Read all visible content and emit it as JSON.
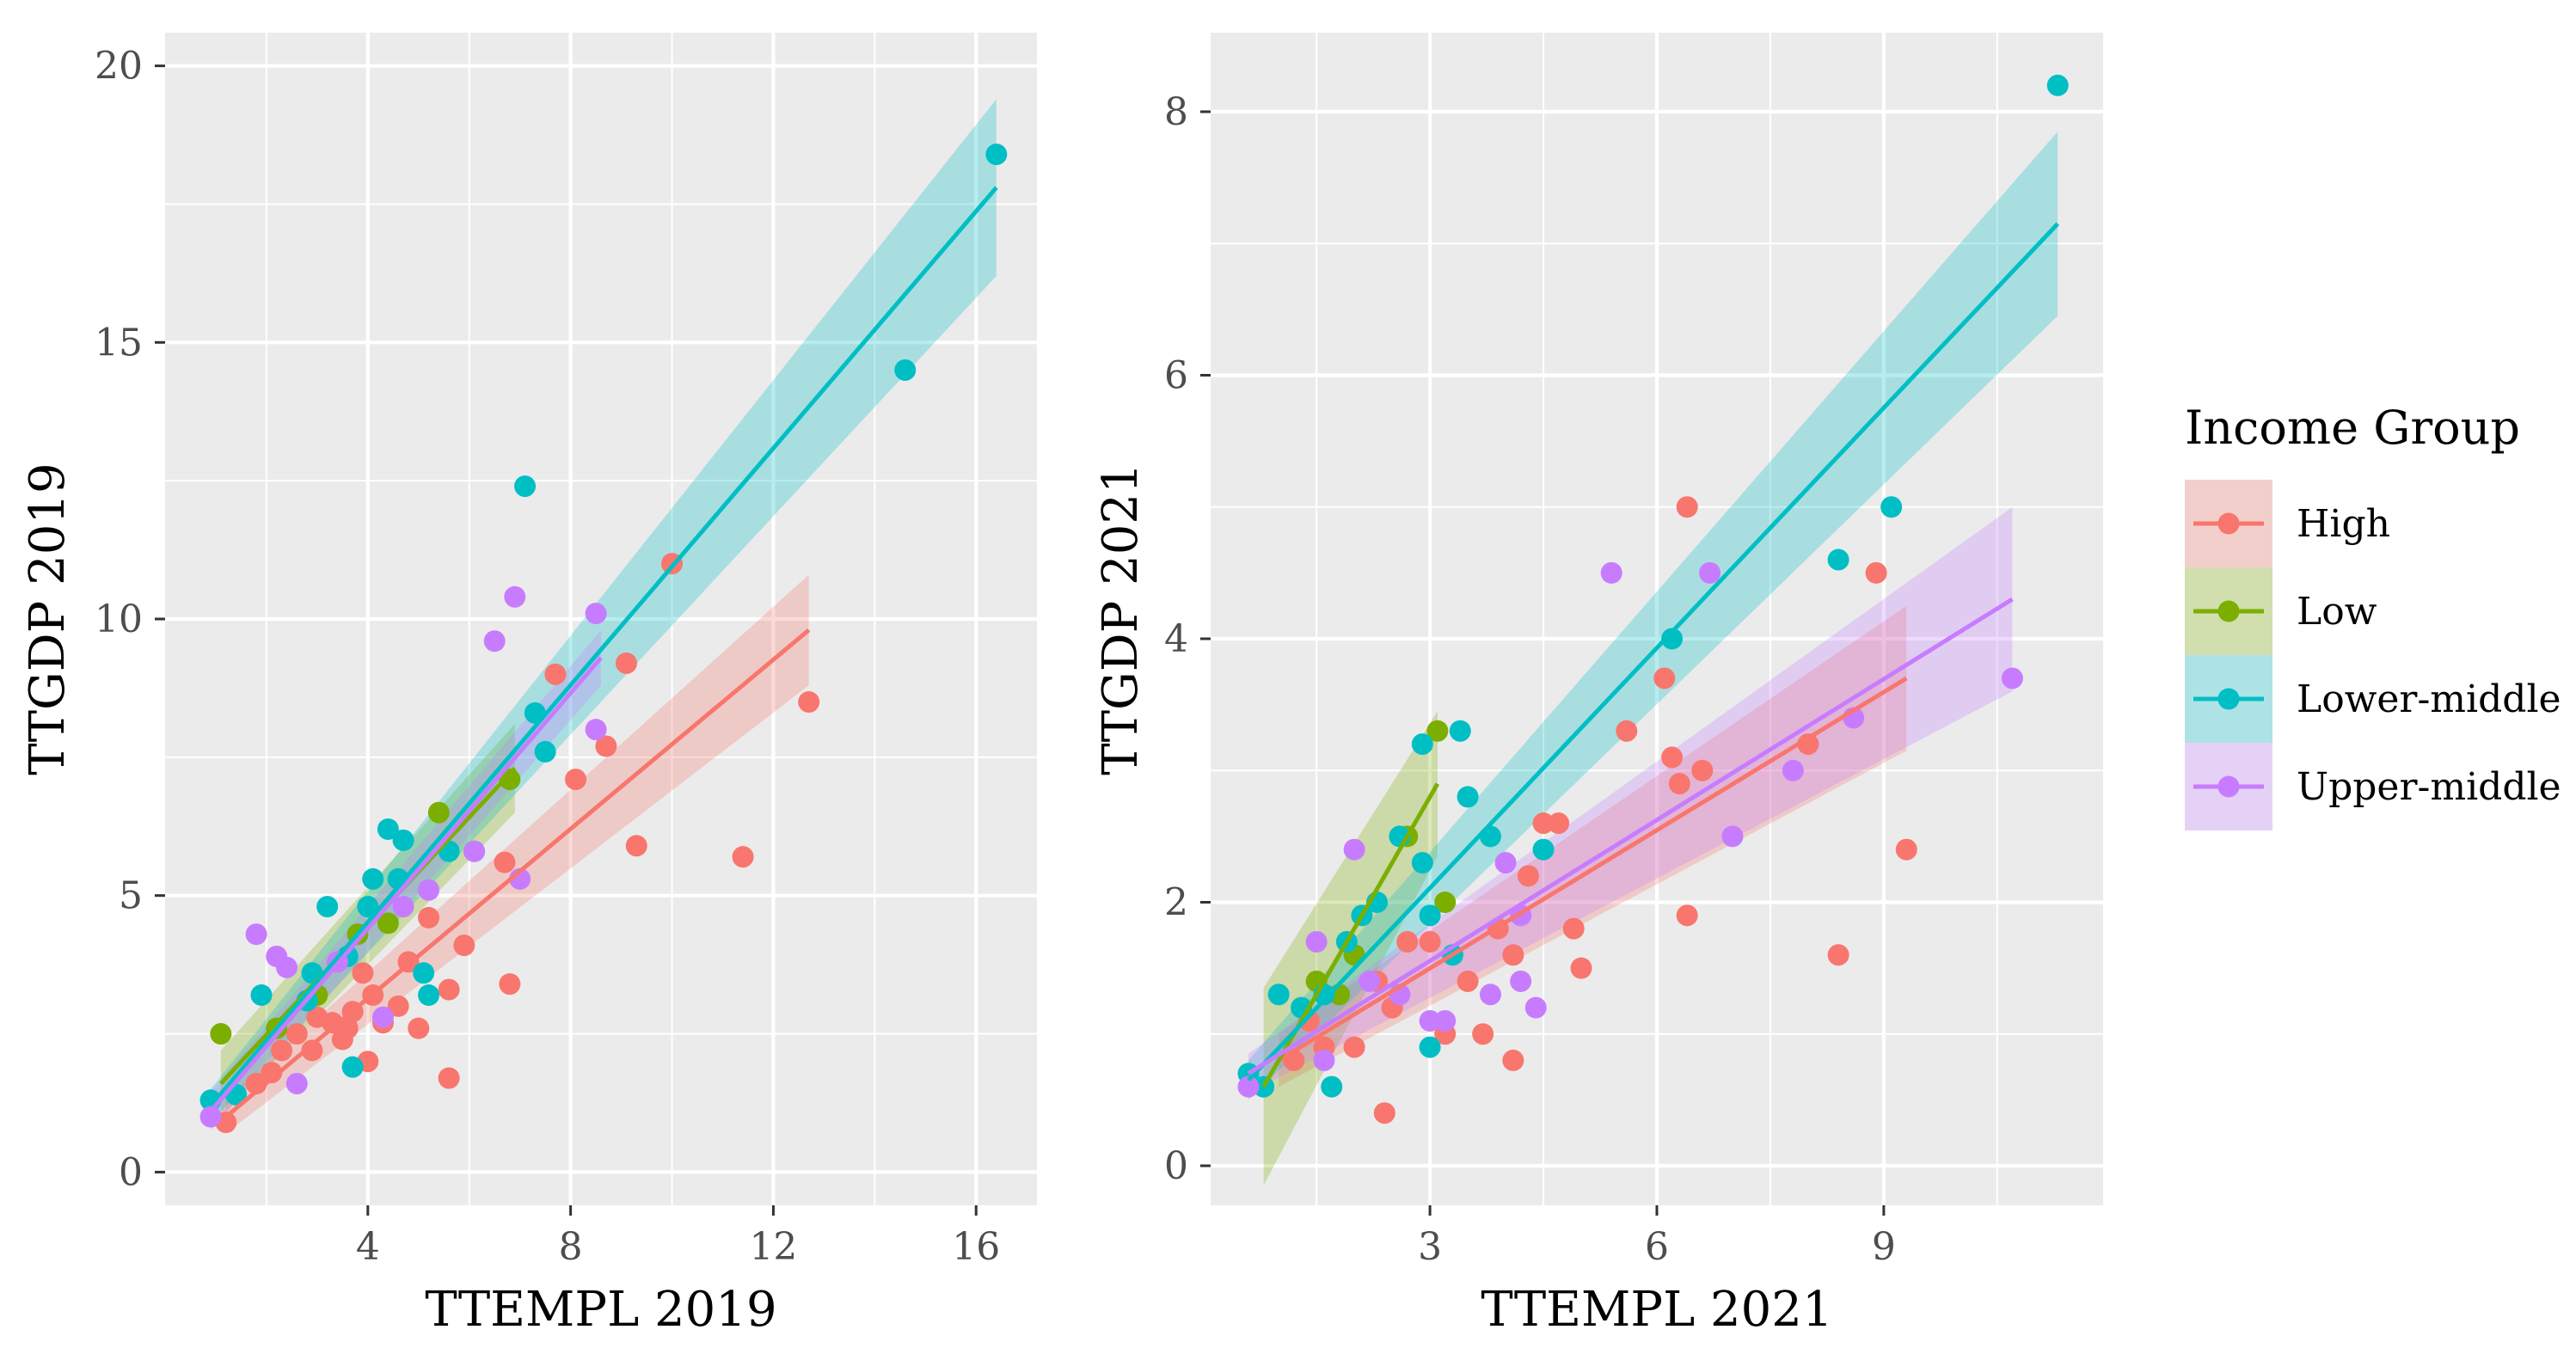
{
  "legend": {
    "title": "Income Group",
    "entries": [
      {
        "label": "High",
        "color": "#F8766D"
      },
      {
        "label": "Low",
        "color": "#7CAE00"
      },
      {
        "label": "Lower-middle",
        "color": "#00BFC4"
      },
      {
        "label": "Upper-middle",
        "color": "#C77CFF"
      }
    ]
  },
  "chart_data": [
    {
      "type": "scatter",
      "xlabel": "TTEMPL 2019",
      "ylabel": "TTGDP 2019",
      "xlim": [
        0,
        17.2
      ],
      "ylim": [
        -0.6,
        20.6
      ],
      "xticks": [
        4,
        8,
        12,
        16
      ],
      "yticks": [
        0,
        5,
        10,
        15,
        20
      ],
      "series": [
        {
          "name": "High",
          "color": "#F8766D",
          "fit": {
            "x": [
              1.2,
              12.7
            ],
            "y": [
              1.0,
              9.8
            ],
            "se": [
              0.3,
              1.0
            ]
          },
          "points": [
            [
              1.2,
              0.9
            ],
            [
              1.8,
              1.6
            ],
            [
              2.1,
              1.8
            ],
            [
              2.3,
              2.2
            ],
            [
              2.6,
              2.5
            ],
            [
              3.0,
              2.8
            ],
            [
              3.3,
              2.7
            ],
            [
              3.5,
              2.4
            ],
            [
              3.7,
              2.9
            ],
            [
              3.9,
              3.6
            ],
            [
              4.1,
              3.2
            ],
            [
              4.3,
              2.7
            ],
            [
              4.6,
              3.0
            ],
            [
              4.8,
              3.8
            ],
            [
              5.0,
              2.6
            ],
            [
              5.2,
              4.6
            ],
            [
              5.6,
              3.3
            ],
            [
              5.9,
              4.1
            ],
            [
              6.8,
              3.4
            ],
            [
              6.7,
              5.6
            ],
            [
              5.6,
              1.7
            ],
            [
              4.0,
              2.0
            ],
            [
              8.1,
              7.1
            ],
            [
              8.7,
              7.7
            ],
            [
              9.3,
              5.9
            ],
            [
              9.1,
              9.2
            ],
            [
              10.0,
              11.0
            ],
            [
              11.4,
              5.7
            ],
            [
              12.7,
              8.5
            ],
            [
              7.7,
              9.0
            ],
            [
              2.9,
              2.2
            ],
            [
              3.6,
              2.6
            ]
          ]
        },
        {
          "name": "Low",
          "color": "#7CAE00",
          "fit": {
            "x": [
              1.1,
              6.9
            ],
            "y": [
              1.6,
              7.3
            ],
            "se": [
              0.6,
              0.8
            ]
          },
          "points": [
            [
              1.1,
              2.5
            ],
            [
              2.2,
              2.6
            ],
            [
              3.0,
              3.2
            ],
            [
              3.8,
              4.3
            ],
            [
              4.4,
              4.5
            ],
            [
              5.4,
              6.5
            ],
            [
              6.8,
              7.1
            ]
          ]
        },
        {
          "name": "Lower-middle",
          "color": "#00BFC4",
          "fit": {
            "x": [
              0.9,
              16.4
            ],
            "y": [
              1.2,
              17.8
            ],
            "se": [
              0.3,
              1.6
            ]
          },
          "points": [
            [
              0.9,
              1.3
            ],
            [
              1.4,
              1.4
            ],
            [
              1.9,
              3.2
            ],
            [
              2.8,
              3.1
            ],
            [
              3.2,
              4.8
            ],
            [
              3.6,
              3.9
            ],
            [
              4.0,
              4.8
            ],
            [
              4.1,
              5.3
            ],
            [
              4.4,
              6.2
            ],
            [
              4.6,
              5.3
            ],
            [
              4.7,
              6.0
            ],
            [
              5.1,
              3.6
            ],
            [
              5.2,
              3.2
            ],
            [
              5.6,
              5.8
            ],
            [
              6.1,
              5.8
            ],
            [
              7.1,
              12.4
            ],
            [
              7.3,
              8.3
            ],
            [
              7.5,
              7.6
            ],
            [
              14.6,
              14.5
            ],
            [
              16.4,
              18.4
            ],
            [
              3.7,
              1.9
            ],
            [
              2.9,
              3.6
            ]
          ]
        },
        {
          "name": "Upper-middle",
          "color": "#C77CFF",
          "fit": {
            "x": [
              0.9,
              8.6
            ],
            "y": [
              1.1,
              9.3
            ],
            "se": [
              0.35,
              0.5
            ]
          },
          "points": [
            [
              0.9,
              1.0
            ],
            [
              1.8,
              4.3
            ],
            [
              2.2,
              3.9
            ],
            [
              2.4,
              3.7
            ],
            [
              2.6,
              1.6
            ],
            [
              3.4,
              3.8
            ],
            [
              4.3,
              2.8
            ],
            [
              5.2,
              5.1
            ],
            [
              6.1,
              5.8
            ],
            [
              6.5,
              9.6
            ],
            [
              6.9,
              10.4
            ],
            [
              7.0,
              5.3
            ],
            [
              8.5,
              10.1
            ],
            [
              8.5,
              8.0
            ],
            [
              4.7,
              4.8
            ]
          ]
        }
      ]
    },
    {
      "type": "scatter",
      "xlabel": "TTEMPL 2021",
      "ylabel": "TTGDP 2021",
      "xlim": [
        0.1,
        11.9
      ],
      "ylim": [
        -0.3,
        8.6
      ],
      "xticks": [
        3,
        6,
        9
      ],
      "yticks": [
        0,
        2,
        4,
        6,
        8
      ],
      "series": [
        {
          "name": "High",
          "color": "#F8766D",
          "fit": {
            "x": [
              1.0,
              9.3
            ],
            "y": [
              0.8,
              3.7
            ],
            "se": [
              0.2,
              0.55
            ]
          },
          "points": [
            [
              1.2,
              0.8
            ],
            [
              1.4,
              1.1
            ],
            [
              1.6,
              0.9
            ],
            [
              2.0,
              0.9
            ],
            [
              2.3,
              1.4
            ],
            [
              2.5,
              1.2
            ],
            [
              2.7,
              1.7
            ],
            [
              3.0,
              1.7
            ],
            [
              3.2,
              1.0
            ],
            [
              3.5,
              1.4
            ],
            [
              3.7,
              1.0
            ],
            [
              3.9,
              1.8
            ],
            [
              4.1,
              1.6
            ],
            [
              4.3,
              2.2
            ],
            [
              4.5,
              2.6
            ],
            [
              4.7,
              2.6
            ],
            [
              4.9,
              1.8
            ],
            [
              5.0,
              1.5
            ],
            [
              5.6,
              3.3
            ],
            [
              6.1,
              3.7
            ],
            [
              6.2,
              3.1
            ],
            [
              6.3,
              2.9
            ],
            [
              6.4,
              5.0
            ],
            [
              6.6,
              3.0
            ],
            [
              8.0,
              3.2
            ],
            [
              8.4,
              1.6
            ],
            [
              8.9,
              4.5
            ],
            [
              9.3,
              2.4
            ],
            [
              6.4,
              1.9
            ],
            [
              2.4,
              0.4
            ],
            [
              4.1,
              0.8
            ]
          ]
        },
        {
          "name": "Low",
          "color": "#7CAE00",
          "fit": {
            "x": [
              0.8,
              3.1
            ],
            "y": [
              0.6,
              2.9
            ],
            "se": [
              0.75,
              0.55
            ]
          },
          "points": [
            [
              0.8,
              0.6
            ],
            [
              1.5,
              1.4
            ],
            [
              1.8,
              1.3
            ],
            [
              2.0,
              1.6
            ],
            [
              2.7,
              2.5
            ],
            [
              3.1,
              3.3
            ],
            [
              3.2,
              2.0
            ]
          ]
        },
        {
          "name": "Lower-middle",
          "color": "#00BFC4",
          "fit": {
            "x": [
              0.6,
              11.3
            ],
            "y": [
              0.65,
              7.15
            ],
            "se": [
              0.15,
              0.7
            ]
          },
          "points": [
            [
              0.6,
              0.7
            ],
            [
              0.8,
              0.6
            ],
            [
              1.0,
              1.3
            ],
            [
              1.3,
              1.2
            ],
            [
              1.6,
              1.3
            ],
            [
              1.9,
              1.7
            ],
            [
              2.1,
              1.9
            ],
            [
              2.3,
              2.0
            ],
            [
              2.6,
              2.5
            ],
            [
              2.9,
              2.3
            ],
            [
              3.0,
              1.9
            ],
            [
              3.3,
              1.6
            ],
            [
              3.4,
              3.3
            ],
            [
              3.5,
              2.8
            ],
            [
              3.8,
              2.5
            ],
            [
              4.5,
              2.4
            ],
            [
              1.7,
              0.6
            ],
            [
              3.0,
              0.9
            ],
            [
              6.2,
              4.0
            ],
            [
              8.4,
              4.6
            ],
            [
              9.1,
              5.0
            ],
            [
              11.3,
              8.2
            ],
            [
              2.9,
              3.2
            ]
          ]
        },
        {
          "name": "Upper-middle",
          "color": "#C77CFF",
          "fit": {
            "x": [
              0.6,
              10.7
            ],
            "y": [
              0.7,
              4.3
            ],
            "se": [
              0.15,
              0.7
            ]
          },
          "points": [
            [
              0.6,
              0.6
            ],
            [
              1.5,
              1.7
            ],
            [
              2.0,
              2.4
            ],
            [
              2.2,
              1.4
            ],
            [
              2.6,
              1.3
            ],
            [
              3.0,
              1.1
            ],
            [
              3.2,
              1.1
            ],
            [
              3.8,
              1.3
            ],
            [
              4.0,
              2.3
            ],
            [
              4.2,
              1.9
            ],
            [
              4.2,
              1.4
            ],
            [
              4.4,
              1.2
            ],
            [
              5.4,
              4.5
            ],
            [
              6.7,
              4.5
            ],
            [
              7.0,
              2.5
            ],
            [
              7.8,
              3.0
            ],
            [
              8.6,
              3.4
            ],
            [
              10.7,
              3.7
            ],
            [
              1.6,
              0.8
            ]
          ]
        }
      ]
    }
  ]
}
